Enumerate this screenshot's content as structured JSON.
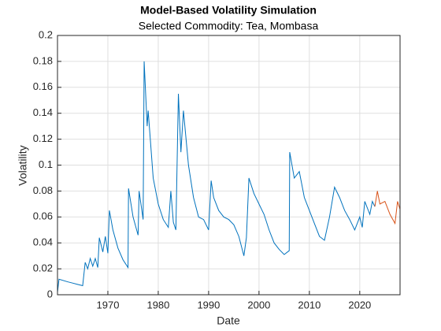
{
  "chart_data": {
    "type": "line",
    "title": "Model-Based Volatility Simulation",
    "subtitle": "Selected Commodity: Tea, Mombasa",
    "x_label": "Date",
    "y_label": "Volatility",
    "xlim": [
      1960,
      2028
    ],
    "xticks": [
      1970,
      1980,
      1990,
      2000,
      2010,
      2020
    ],
    "ylim": [
      0,
      0.2
    ],
    "yticks": [
      0,
      0.02,
      0.04,
      0.06,
      0.08,
      0.1,
      0.12,
      0.14,
      0.16,
      0.18,
      0.2
    ],
    "grid": true,
    "series": [
      {
        "color": "#0072bd",
        "x": [
          1960,
          1960.3,
          1962,
          1963,
          1964,
          1965,
          1965.5,
          1966,
          1966.5,
          1967,
          1967.5,
          1968,
          1968.3,
          1969,
          1969.5,
          1970,
          1970.3,
          1971,
          1972,
          1973,
          1974,
          1974.1,
          1975,
          1976,
          1976.2,
          1977,
          1977.2,
          1977.8,
          1978,
          1979,
          1980,
          1981,
          1982,
          1982.5,
          1983,
          1983.5,
          1984,
          1984.5,
          1985,
          1986,
          1987,
          1988,
          1989,
          1990,
          1990.5,
          1991,
          1992,
          1993,
          1994,
          1995,
          1996,
          1997,
          1997.5,
          1998,
          1999,
          2000,
          2001,
          2002,
          2003,
          2004,
          2005,
          2006,
          2006.1,
          2007,
          2008,
          2009,
          2010,
          2011,
          2012,
          2013,
          2014,
          2015,
          2016,
          2017,
          2018,
          2019,
          2020,
          2020.5,
          2021,
          2022,
          2022.5,
          2023
        ],
        "values": [
          0.002,
          0.012,
          0.01,
          0.009,
          0.008,
          0.007,
          0.025,
          0.02,
          0.028,
          0.022,
          0.028,
          0.021,
          0.044,
          0.033,
          0.045,
          0.032,
          0.065,
          0.05,
          0.036,
          0.027,
          0.021,
          0.082,
          0.06,
          0.046,
          0.08,
          0.058,
          0.18,
          0.13,
          0.142,
          0.09,
          0.07,
          0.058,
          0.052,
          0.08,
          0.056,
          0.05,
          0.155,
          0.11,
          0.142,
          0.1,
          0.075,
          0.06,
          0.058,
          0.05,
          0.088,
          0.075,
          0.065,
          0.06,
          0.058,
          0.054,
          0.045,
          0.03,
          0.044,
          0.09,
          0.078,
          0.07,
          0.062,
          0.05,
          0.04,
          0.035,
          0.031,
          0.034,
          0.11,
          0.09,
          0.095,
          0.075,
          0.065,
          0.055,
          0.045,
          0.042,
          0.06,
          0.083,
          0.075,
          0.065,
          0.058,
          0.05,
          0.06,
          0.052,
          0.072,
          0.062,
          0.072,
          0.068
        ]
      },
      {
        "color": "#d95319",
        "x": [
          2023,
          2023.5,
          2024,
          2025,
          2026,
          2027,
          2027.5,
          2028
        ],
        "values": [
          0.068,
          0.08,
          0.07,
          0.072,
          0.062,
          0.055,
          0.072,
          0.066
        ]
      }
    ]
  }
}
